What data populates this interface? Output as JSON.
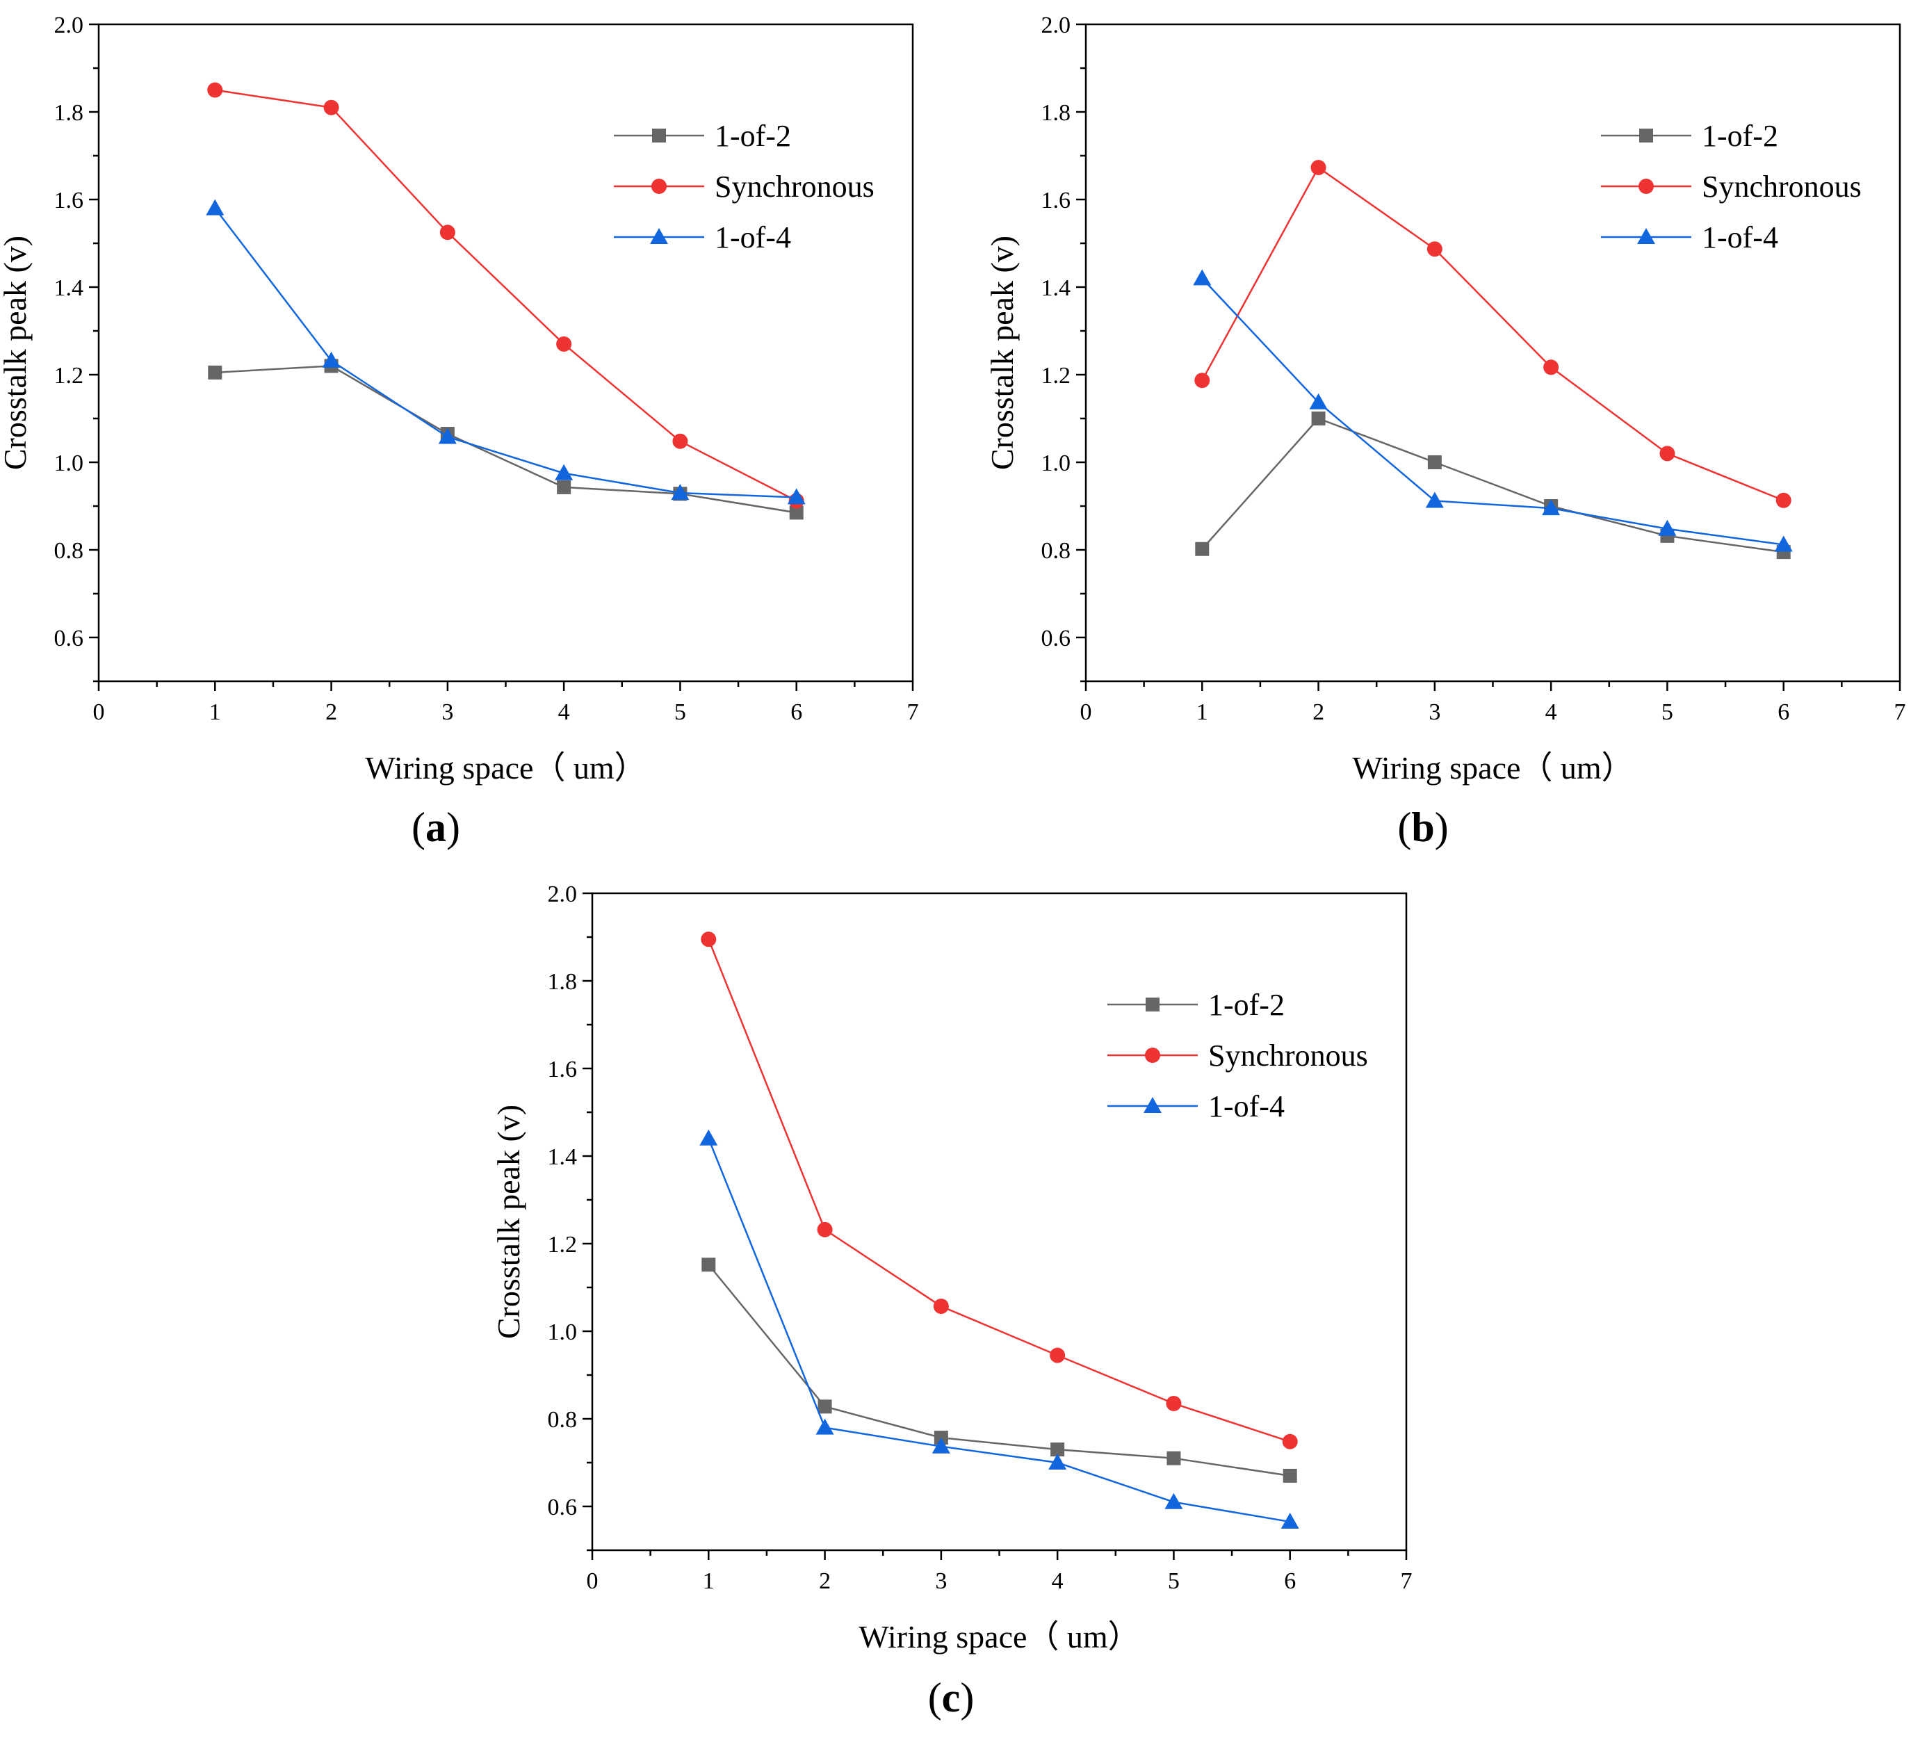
{
  "figure": {
    "panels": [
      "a",
      "b",
      "c"
    ]
  },
  "chart_data": [
    {
      "type": "line",
      "panel_label": "a",
      "xlabel": "Wiring space（ um）",
      "ylabel": "Crosstalk peak (v)",
      "xlim": [
        0,
        7
      ],
      "ylim": [
        0.5,
        2.0
      ],
      "xticks": [
        0,
        1,
        2,
        3,
        4,
        5,
        6,
        7
      ],
      "yticks": [
        0.6,
        0.8,
        1.0,
        1.2,
        1.4,
        1.6,
        1.8,
        2.0
      ],
      "ytick_labels": [
        "0.6",
        "0.8",
        "1.0",
        "1.2",
        "1.4",
        "1.6",
        "1.8",
        "2.0"
      ],
      "x": [
        1,
        2,
        3,
        4,
        5,
        6
      ],
      "legend_position": "top-right",
      "series": [
        {
          "name": "1-of-2",
          "color": "#666666",
          "marker": "square",
          "values": [
            1.205,
            1.22,
            1.065,
            0.943,
            0.928,
            0.885
          ]
        },
        {
          "name": "Synchronous",
          "color": "#ee3333",
          "marker": "circle",
          "values": [
            1.85,
            1.81,
            1.525,
            1.27,
            1.048,
            0.912
          ]
        },
        {
          "name": "1-of-4",
          "color": "#1166dd",
          "marker": "triangle",
          "values": [
            1.58,
            1.232,
            1.058,
            0.975,
            0.93,
            0.92
          ]
        }
      ]
    },
    {
      "type": "line",
      "panel_label": "b",
      "xlabel": "Wiring space（ um）",
      "ylabel": "Crosstalk peak (v)",
      "xlim": [
        0,
        7
      ],
      "ylim": [
        0.5,
        2.0
      ],
      "xticks": [
        0,
        1,
        2,
        3,
        4,
        5,
        6,
        7
      ],
      "yticks": [
        0.6,
        0.8,
        1.0,
        1.2,
        1.4,
        1.6,
        1.8,
        2.0
      ],
      "ytick_labels": [
        "0.6",
        "0.8",
        "1.0",
        "1.2",
        "1.4",
        "1.6",
        "1.8",
        "2.0"
      ],
      "x": [
        1,
        2,
        3,
        4,
        5,
        6
      ],
      "legend_position": "top-right",
      "series": [
        {
          "name": "1-of-2",
          "color": "#666666",
          "marker": "square",
          "values": [
            0.802,
            1.1,
            1.0,
            0.9,
            0.832,
            0.795
          ]
        },
        {
          "name": "Synchronous",
          "color": "#ee3333",
          "marker": "circle",
          "values": [
            1.187,
            1.673,
            1.487,
            1.217,
            1.02,
            0.913
          ]
        },
        {
          "name": "1-of-4",
          "color": "#1166dd",
          "marker": "triangle",
          "values": [
            1.42,
            1.137,
            0.912,
            0.895,
            0.848,
            0.812
          ]
        }
      ]
    },
    {
      "type": "line",
      "panel_label": "c",
      "xlabel": "Wiring space（ um）",
      "ylabel": "Crosstalk peak (v)",
      "xlim": [
        0,
        7
      ],
      "ylim": [
        0.5,
        2.0
      ],
      "xticks": [
        0,
        1,
        2,
        3,
        4,
        5,
        6,
        7
      ],
      "yticks": [
        0.6,
        0.8,
        1.0,
        1.2,
        1.4,
        1.6,
        1.8,
        2.0
      ],
      "ytick_labels": [
        "0.6",
        "0.8",
        "1.0",
        "1.2",
        "1.4",
        "1.6",
        "1.8",
        "2.0"
      ],
      "x": [
        1,
        2,
        3,
        4,
        5,
        6
      ],
      "legend_position": "top-right",
      "series": [
        {
          "name": "1-of-2",
          "color": "#666666",
          "marker": "square",
          "values": [
            1.152,
            0.828,
            0.757,
            0.73,
            0.71,
            0.67
          ]
        },
        {
          "name": "Synchronous",
          "color": "#ee3333",
          "marker": "circle",
          "values": [
            1.895,
            1.232,
            1.057,
            0.945,
            0.835,
            0.748
          ]
        },
        {
          "name": "1-of-4",
          "color": "#1166dd",
          "marker": "triangle",
          "values": [
            1.44,
            0.78,
            0.737,
            0.7,
            0.61,
            0.565
          ]
        }
      ]
    }
  ]
}
